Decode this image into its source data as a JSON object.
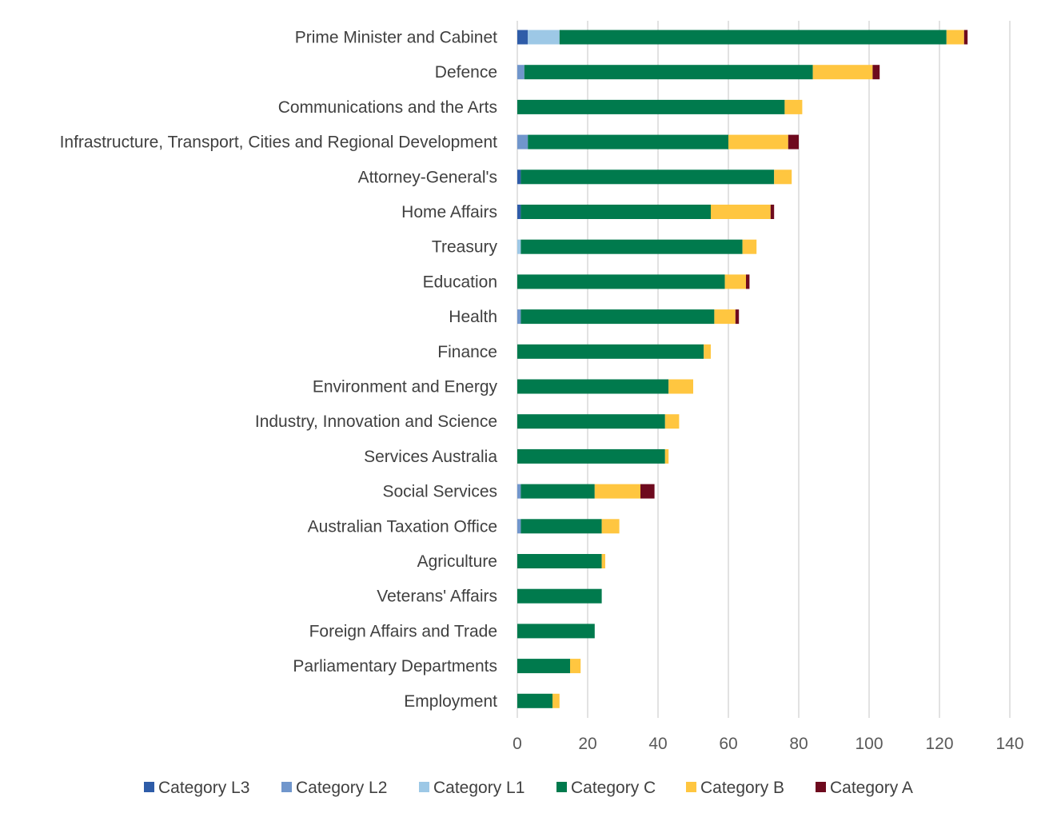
{
  "chart_data": {
    "type": "bar",
    "orientation": "horizontal",
    "stacked": true,
    "title": "",
    "xlabel": "",
    "ylabel": "",
    "xlim": [
      0,
      140
    ],
    "x_ticks": [
      0,
      20,
      40,
      60,
      80,
      100,
      120,
      140
    ],
    "grid": true,
    "legend_position": "bottom",
    "categories": [
      "Prime Minister and Cabinet",
      "Defence",
      "Communications and the Arts",
      "Infrastructure, Transport, Cities and Regional Development",
      "Attorney-General's",
      "Home Affairs",
      "Treasury",
      "Education",
      "Health",
      "Finance",
      "Environment and Energy",
      "Industry, Innovation and Science",
      "Services Australia",
      "Social Services",
      "Australian Taxation Office",
      "Agriculture",
      "Veterans' Affairs",
      "Foreign Affairs and Trade",
      "Parliamentary Departments",
      "Employment"
    ],
    "series": [
      {
        "name": "Category L3",
        "color": "#2E5CA8",
        "values": [
          3,
          0,
          0,
          0,
          1,
          1,
          0,
          0,
          0,
          0,
          0,
          0,
          0,
          0,
          0,
          0,
          0,
          0,
          0,
          0
        ]
      },
      {
        "name": "Category L2",
        "color": "#7096CC",
        "values": [
          0,
          2,
          0,
          3,
          0,
          0,
          0,
          0,
          1,
          0,
          0,
          0,
          0,
          1,
          1,
          0,
          0,
          0,
          0,
          0
        ]
      },
      {
        "name": "Category L1",
        "color": "#9DC8E6",
        "values": [
          9,
          0,
          0,
          0,
          0,
          0,
          1,
          0,
          0,
          0,
          0,
          0,
          0,
          0,
          0,
          0,
          0,
          0,
          0,
          0
        ]
      },
      {
        "name": "Category C",
        "color": "#007A4D",
        "values": [
          110,
          82,
          76,
          57,
          72,
          54,
          63,
          59,
          55,
          53,
          43,
          42,
          42,
          21,
          23,
          24,
          24,
          22,
          15,
          10
        ]
      },
      {
        "name": "Category B",
        "color": "#FFC640",
        "values": [
          5,
          17,
          5,
          17,
          5,
          17,
          4,
          6,
          6,
          2,
          7,
          4,
          1,
          13,
          5,
          1,
          0,
          0,
          3,
          2
        ]
      },
      {
        "name": "Category A",
        "color": "#6E0A1E",
        "values": [
          1,
          2,
          0,
          3,
          0,
          1,
          0,
          1,
          1,
          0,
          0,
          0,
          0,
          4,
          0,
          0,
          0,
          0,
          0,
          0
        ]
      }
    ]
  }
}
